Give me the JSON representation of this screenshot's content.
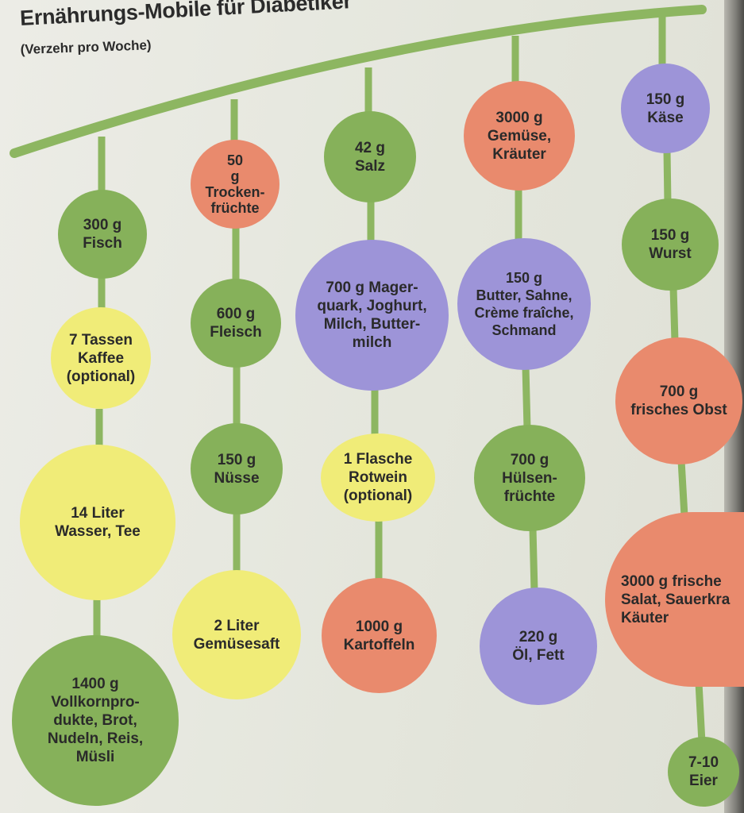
{
  "title": "Ernährungs-Mobile für Diabetiker",
  "subtitle": "(Verzehr pro Woche)",
  "colors": {
    "green": "#86b15a",
    "salmon": "#e98a6d",
    "yellow": "#f0ec78",
    "purple": "#9d94d8",
    "string": "#8db661"
  },
  "items": {
    "fisch": "300 g\nFisch",
    "kaffee": "7 Tassen\nKaffee\n(optional)",
    "wasser": "14 Liter\nWasser, Tee",
    "vollkorn": "1400 g\nVollkornpro-\ndukte, Brot,\nNudeln, Reis,\nMüsli",
    "trockenfruechte": "50\ng\nTrocken-\nfrüchte",
    "fleisch": "600 g\nFleisch",
    "nuesse": "150 g\nNüsse",
    "gemuesesaft": "2 Liter\nGemüsesaft",
    "salz": "42 g\nSalz",
    "quark": "700 g Mager-\nquark, Joghurt,\nMilch, Butter-\nmilch",
    "rotwein": "1 Flasche\nRotwein\n(optional)",
    "kartoffeln": "1000 g\nKartoffeln",
    "gemuese": "3000 g\nGemüse,\nKräuter",
    "butter": "150 g\nButter, Sahne,\nCrème fraîche,\nSchmand",
    "huelsenfruechte": "700 g\nHülsen-\nfrüchte",
    "oel": "220 g\nÖl, Fett",
    "kaese": "150 g\nKäse",
    "wurst": "150 g\nWurst",
    "obst": "700 g\nfrisches Obst",
    "salat": "3000 g frische\nSalat, Sauerkra\nKäuter",
    "eier": "7-10\nEier"
  }
}
